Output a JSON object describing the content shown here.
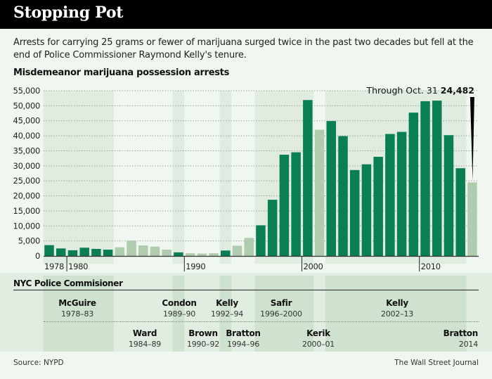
{
  "header": {
    "title": "Stopping Pot"
  },
  "subtitle": "Arrests for carrying 25 grams or fewer of marijuana surged twice in the past two decades but fell at the end of Police Commissioner Raymond Kelly's tenure.",
  "chart_data": {
    "type": "bar",
    "title": "Misdemeanor marijuana possession arrests",
    "xlabel": "",
    "ylabel": "",
    "ylim": [
      0,
      55000
    ],
    "grid": true,
    "yticks": [
      0,
      5000,
      10000,
      15000,
      20000,
      25000,
      30000,
      35000,
      40000,
      45000,
      50000,
      55000
    ],
    "ytick_labels": [
      "0",
      "5,000",
      "10,000",
      "15,000",
      "20,000",
      "25,000",
      "30,000",
      "35,000",
      "40,000",
      "45,000",
      "50,000",
      "55,000"
    ],
    "xtick_labels": [
      {
        "year": 1978,
        "label": "1978"
      },
      {
        "year": 1980,
        "label": "1980"
      },
      {
        "year": 1990,
        "label": "1990"
      },
      {
        "year": 2000,
        "label": "2000"
      },
      {
        "year": 2010,
        "label": "2010"
      }
    ],
    "categories": [
      1978,
      1979,
      1980,
      1981,
      1982,
      1983,
      1984,
      1985,
      1986,
      1987,
      1988,
      1989,
      1990,
      1991,
      1992,
      1993,
      1994,
      1995,
      1996,
      1997,
      1998,
      1999,
      2000,
      2001,
      2002,
      2003,
      2004,
      2005,
      2006,
      2007,
      2008,
      2009,
      2010,
      2011,
      2012,
      2013,
      2014
    ],
    "values": [
      3600,
      2500,
      1900,
      2750,
      2350,
      2100,
      2900,
      5100,
      3500,
      3100,
      2100,
      1200,
      900,
      800,
      900,
      1800,
      3400,
      6000,
      10200,
      18700,
      33700,
      34500,
      51900,
      42000,
      44900,
      39900,
      28600,
      30500,
      33000,
      40600,
      41300,
      47700,
      51500,
      51700,
      40200,
      29200,
      24482
    ],
    "highlight": [
      true,
      true,
      true,
      true,
      true,
      true,
      false,
      false,
      false,
      false,
      false,
      true,
      false,
      false,
      false,
      true,
      false,
      false,
      true,
      true,
      true,
      true,
      true,
      false,
      true,
      true,
      true,
      true,
      true,
      true,
      true,
      true,
      true,
      true,
      true,
      true,
      false
    ],
    "colors": {
      "dark": "#0a7f53",
      "light": "#b0ccae"
    },
    "annotation": {
      "prefix": "Through Oct. 31",
      "value": "24,482",
      "year": 2014
    }
  },
  "commissioners": {
    "title": "NYC Police Commisioner",
    "top_row": [
      {
        "name": "McGuire",
        "years": "1978–83"
      },
      {
        "name": "Condon",
        "years": "1989–90"
      },
      {
        "name": "Kelly",
        "years": "1992–94"
      },
      {
        "name": "Safir",
        "years": "1996–2000"
      },
      {
        "name": "Kelly",
        "years": "2002–13"
      }
    ],
    "bottom_row": [
      {
        "name": "Ward",
        "years": "1984–89"
      },
      {
        "name": "Brown",
        "years": "1990–92"
      },
      {
        "name": "Bratton",
        "years": "1994–96"
      },
      {
        "name": "Kerik",
        "years": "2000–01"
      },
      {
        "name": "Bratton",
        "years": "2014"
      }
    ]
  },
  "footer": {
    "source": "Source: NYPD",
    "credit": "The Wall Street Journal"
  }
}
